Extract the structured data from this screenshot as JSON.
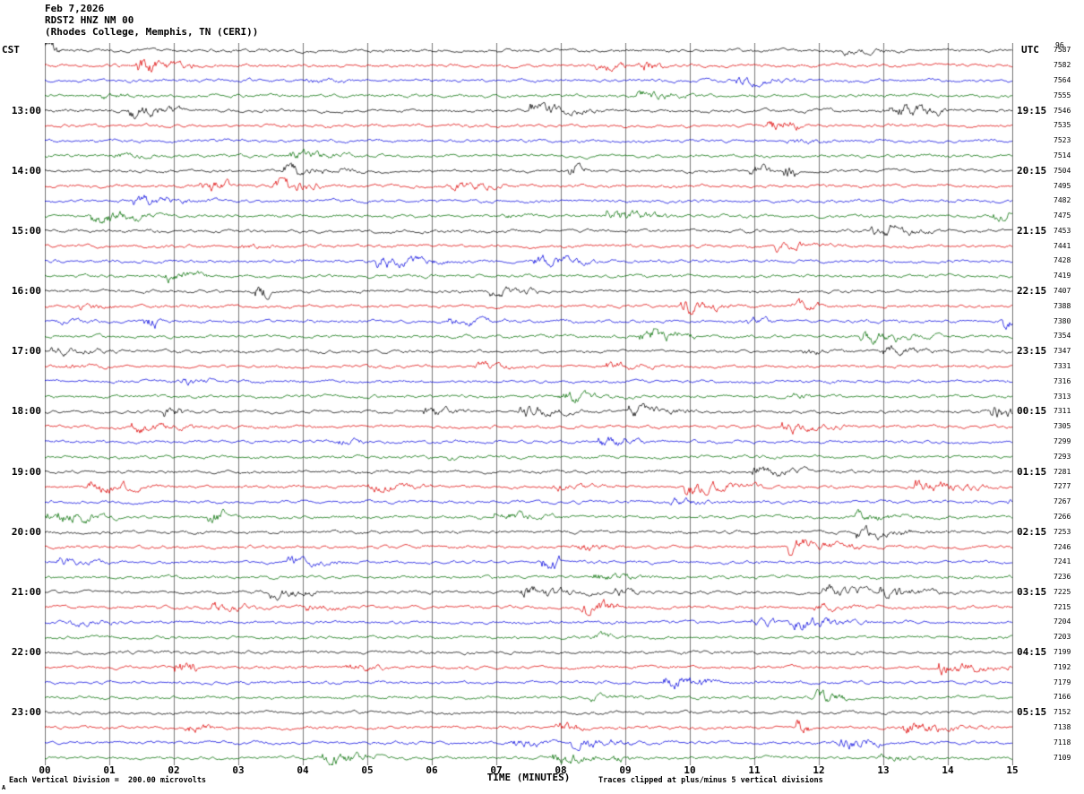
{
  "header": {
    "date": "Feb 7,2026",
    "station": "RDST2 HNZ NM 00",
    "location": "(Rhodes College, Memphis, TN (CERI))"
  },
  "axes": {
    "left_tz": "CST",
    "right_tz": "UTC",
    "top_right_number": "96",
    "x_label": "TIME (MINUTES)",
    "x_ticks": [
      "00",
      "01",
      "02",
      "03",
      "04",
      "05",
      "06",
      "07",
      "08",
      "09",
      "10",
      "11",
      "12",
      "13",
      "14",
      "15"
    ]
  },
  "footer": {
    "left": "Each Vertical Division =  200.00 microvolts",
    "right": "Traces clipped at plus/minus 5 vertical divisions",
    "corner": "A"
  },
  "colors": {
    "black": "#000000",
    "red": "#dd0000",
    "blue": "#0000dd",
    "green": "#006e00",
    "grid": "#7a7a7a"
  },
  "rows": [
    {
      "c": "black",
      "l": "",
      "r": "",
      "n": "7587"
    },
    {
      "c": "red",
      "l": "",
      "r": "",
      "n": "7582"
    },
    {
      "c": "blue",
      "l": "",
      "r": "",
      "n": "7564"
    },
    {
      "c": "green",
      "l": "",
      "r": "",
      "n": "7555"
    },
    {
      "c": "black",
      "l": "13:00",
      "r": "19:15",
      "n": "7546"
    },
    {
      "c": "red",
      "l": "",
      "r": "",
      "n": "7535"
    },
    {
      "c": "blue",
      "l": "",
      "r": "",
      "n": "7523"
    },
    {
      "c": "green",
      "l": "",
      "r": "",
      "n": "7514"
    },
    {
      "c": "black",
      "l": "14:00",
      "r": "20:15",
      "n": "7504"
    },
    {
      "c": "red",
      "l": "",
      "r": "",
      "n": "7495"
    },
    {
      "c": "blue",
      "l": "",
      "r": "",
      "n": "7482"
    },
    {
      "c": "green",
      "l": "",
      "r": "",
      "n": "7475"
    },
    {
      "c": "black",
      "l": "15:00",
      "r": "21:15",
      "n": "7453"
    },
    {
      "c": "red",
      "l": "",
      "r": "",
      "n": "7441"
    },
    {
      "c": "blue",
      "l": "",
      "r": "",
      "n": "7428"
    },
    {
      "c": "green",
      "l": "",
      "r": "",
      "n": "7419"
    },
    {
      "c": "black",
      "l": "16:00",
      "r": "22:15",
      "n": "7407"
    },
    {
      "c": "red",
      "l": "",
      "r": "",
      "n": "7388"
    },
    {
      "c": "blue",
      "l": "",
      "r": "",
      "n": "7380"
    },
    {
      "c": "green",
      "l": "",
      "r": "",
      "n": "7354"
    },
    {
      "c": "black",
      "l": "17:00",
      "r": "23:15",
      "n": "7347"
    },
    {
      "c": "red",
      "l": "",
      "r": "",
      "n": "7331"
    },
    {
      "c": "blue",
      "l": "",
      "r": "",
      "n": "7316"
    },
    {
      "c": "green",
      "l": "",
      "r": "",
      "n": "7313"
    },
    {
      "c": "black",
      "l": "18:00",
      "r": "00:15",
      "n": "7311"
    },
    {
      "c": "red",
      "l": "",
      "r": "",
      "n": "7305"
    },
    {
      "c": "blue",
      "l": "",
      "r": "",
      "n": "7299"
    },
    {
      "c": "green",
      "l": "",
      "r": "",
      "n": "7293"
    },
    {
      "c": "black",
      "l": "19:00",
      "r": "01:15",
      "n": "7281"
    },
    {
      "c": "red",
      "l": "",
      "r": "",
      "n": "7277"
    },
    {
      "c": "blue",
      "l": "",
      "r": "",
      "n": "7267"
    },
    {
      "c": "green",
      "l": "",
      "r": "",
      "n": "7266"
    },
    {
      "c": "black",
      "l": "20:00",
      "r": "02:15",
      "n": "7253"
    },
    {
      "c": "red",
      "l": "",
      "r": "",
      "n": "7246"
    },
    {
      "c": "blue",
      "l": "",
      "r": "",
      "n": "7241"
    },
    {
      "c": "green",
      "l": "",
      "r": "",
      "n": "7236"
    },
    {
      "c": "black",
      "l": "21:00",
      "r": "03:15",
      "n": "7225"
    },
    {
      "c": "red",
      "l": "",
      "r": "",
      "n": "7215"
    },
    {
      "c": "blue",
      "l": "",
      "r": "",
      "n": "7204"
    },
    {
      "c": "green",
      "l": "",
      "r": "",
      "n": "7203"
    },
    {
      "c": "black",
      "l": "22:00",
      "r": "04:15",
      "n": "7199"
    },
    {
      "c": "red",
      "l": "",
      "r": "",
      "n": "7192"
    },
    {
      "c": "blue",
      "l": "",
      "r": "",
      "n": "7179"
    },
    {
      "c": "green",
      "l": "",
      "r": "",
      "n": "7166"
    },
    {
      "c": "black",
      "l": "23:00",
      "r": "05:15",
      "n": "7152"
    },
    {
      "c": "red",
      "l": "",
      "r": "",
      "n": "7138"
    },
    {
      "c": "blue",
      "l": "",
      "r": "",
      "n": "7118"
    },
    {
      "c": "green",
      "l": "",
      "r": "",
      "n": "7109"
    }
  ],
  "chart_data": {
    "type": "line",
    "subtype": "helicorder_seismogram",
    "title": "RDST2 HNZ NM 00 (Rhodes College, Memphis, TN (CERI)) Feb 7,2026",
    "xlabel": "TIME (MINUTES)",
    "x_range_minutes": [
      0,
      15
    ],
    "x_ticks": [
      "00",
      "01",
      "02",
      "03",
      "04",
      "05",
      "06",
      "07",
      "08",
      "09",
      "10",
      "11",
      "12",
      "13",
      "14",
      "15"
    ],
    "rows": 48,
    "minutes_per_row": 15,
    "row_color_cycle": [
      "black",
      "red",
      "blue",
      "green"
    ],
    "left_hour_labels_cst": [
      "13:00",
      "14:00",
      "15:00",
      "16:00",
      "17:00",
      "18:00",
      "19:00",
      "20:00",
      "21:00",
      "22:00",
      "23:00"
    ],
    "right_hour_labels_utc": [
      "19:15",
      "20:15",
      "21:15",
      "22:15",
      "23:15",
      "00:15",
      "01:15",
      "02:15",
      "03:15",
      "04:15",
      "05:15"
    ],
    "trace_id_numbers": [
      "7587",
      "7582",
      "7564",
      "7555",
      "7546",
      "7535",
      "7523",
      "7514",
      "7504",
      "7495",
      "7482",
      "7475",
      "7453",
      "7441",
      "7428",
      "7419",
      "7407",
      "7388",
      "7380",
      "7354",
      "7347",
      "7331",
      "7316",
      "7313",
      "7311",
      "7305",
      "7299",
      "7293",
      "7281",
      "7277",
      "7267",
      "7266",
      "7253",
      "7246",
      "7241",
      "7236",
      "7225",
      "7215",
      "7204",
      "7203",
      "7199",
      "7192",
      "7179",
      "7166",
      "7152",
      "7138",
      "7118",
      "7109"
    ],
    "vertical_division_microvolts": 200.0,
    "clip_limit_divisions": 5,
    "grid": "vertical gridlines at each minute",
    "signal": "continuous ambient seismic noise with intermittent short bursts; exact waveform sample values not resolvable from the image"
  }
}
